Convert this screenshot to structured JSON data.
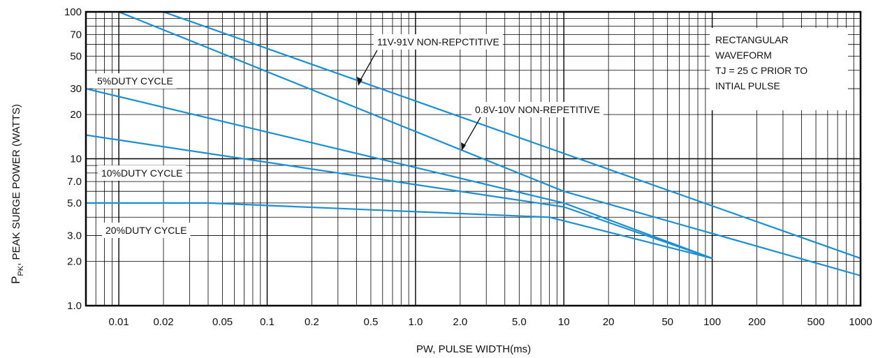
{
  "chart_data": {
    "type": "line",
    "xlabel": "PW, PULSE WIDTH(ms)",
    "ylabel_main": "P",
    "ylabel_sub": "PK",
    "ylabel_rest": ", PEAK SURGE POWER (WATTS)",
    "x_scale": "log",
    "y_scale": "log",
    "xlim": [
      0.006,
      1000
    ],
    "ylim": [
      1.0,
      100
    ],
    "grid": true,
    "x_ticks": [
      {
        "value": 0.01,
        "label": "0.01"
      },
      {
        "value": 0.02,
        "label": "0.02"
      },
      {
        "value": 0.05,
        "label": "0.05"
      },
      {
        "value": 0.1,
        "label": "0.1"
      },
      {
        "value": 0.2,
        "label": "0.2"
      },
      {
        "value": 0.5,
        "label": "0.5"
      },
      {
        "value": 1.0,
        "label": "1.0"
      },
      {
        "value": 2.0,
        "label": "2.0"
      },
      {
        "value": 5.0,
        "label": "5.0"
      },
      {
        "value": 10,
        "label": "10"
      },
      {
        "value": 20,
        "label": "20"
      },
      {
        "value": 50,
        "label": "50"
      },
      {
        "value": 100,
        "label": "100"
      },
      {
        "value": 200,
        "label": "200"
      },
      {
        "value": 500,
        "label": "500"
      },
      {
        "value": 1000,
        "label": "1000"
      }
    ],
    "y_ticks": [
      {
        "value": 1.0,
        "label": "1.0"
      },
      {
        "value": 2.0,
        "label": "2.0"
      },
      {
        "value": 3.0,
        "label": "3.0"
      },
      {
        "value": 5.0,
        "label": "5.0"
      },
      {
        "value": 7.0,
        "label": "7.0"
      },
      {
        "value": 10,
        "label": "10"
      },
      {
        "value": 20,
        "label": "20"
      },
      {
        "value": 30,
        "label": "30"
      },
      {
        "value": 50,
        "label": "50"
      },
      {
        "value": 70,
        "label": "70"
      },
      {
        "value": 100,
        "label": "100"
      }
    ],
    "series": [
      {
        "name": "11V-91V NON-REPCTITIVE",
        "x": [
          0.02,
          1000
        ],
        "y": [
          100,
          2.1
        ]
      },
      {
        "name": "0.8V-10V NON-REPETITIVE",
        "x": [
          0.01,
          10,
          1000
        ],
        "y": [
          100,
          6,
          1.6
        ]
      },
      {
        "name": "5%DUTY CYCLE",
        "x": [
          0.006,
          10,
          100
        ],
        "y": [
          30,
          5,
          2.1
        ]
      },
      {
        "name": "10%DUTY CYCLE",
        "x": [
          0.006,
          10,
          100
        ],
        "y": [
          14.5,
          4.7,
          2.1
        ]
      },
      {
        "name": "20%DUTY CYCLE",
        "x": [
          0.006,
          0.04,
          8,
          100
        ],
        "y": [
          5,
          5,
          4,
          2.1
        ]
      }
    ],
    "annotations": {
      "label_5pct": "5%DUTY CYCLE",
      "label_10pct": "10%DUTY CYCLE",
      "label_20pct": "20%DUTY CYCLE",
      "label_11v": "11V-91V NON-REPCTITIVE",
      "label_08v": "0.8V-10V NON-REPETITIVE",
      "note_line1": "RECTANGULAR",
      "note_line2": "WAVEFORM",
      "note_line3": "TJ = 25 C PRIOR TO",
      "note_line4": "INTIAL PULSE"
    },
    "colors": {
      "series": "#1a8fd6",
      "grid": "#000000",
      "background": "#ffffff"
    }
  }
}
